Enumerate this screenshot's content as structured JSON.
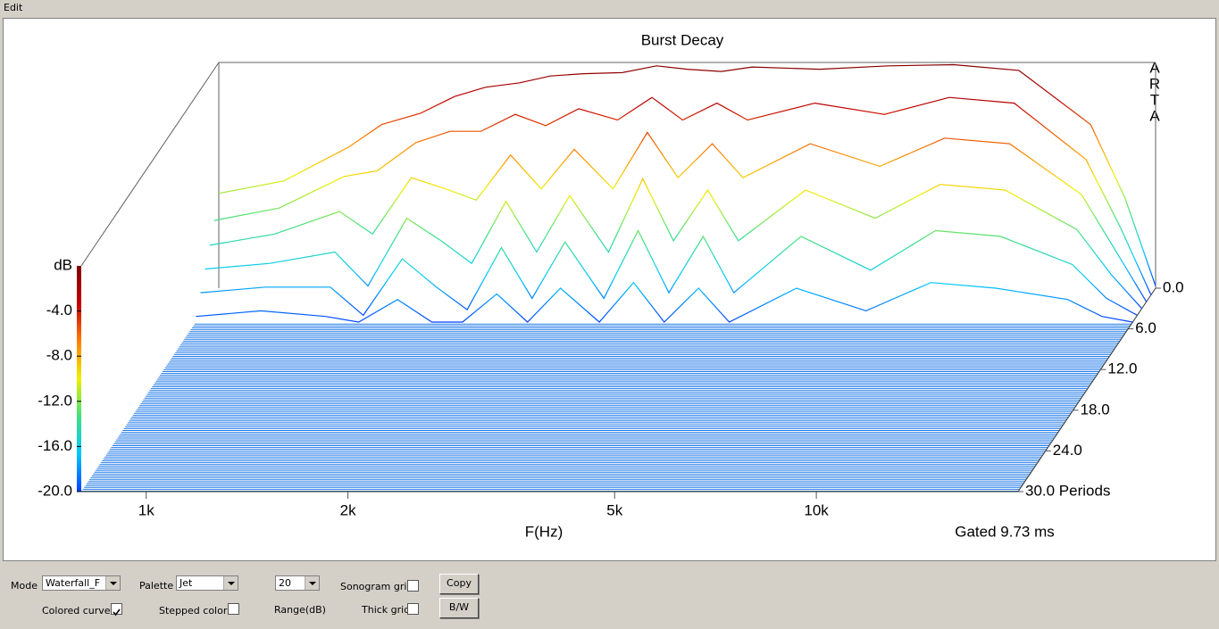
{
  "menu": {
    "items": [
      "Edit"
    ]
  },
  "chart_data": {
    "type": "waterfall",
    "title": "Burst Decay",
    "side_label": "ARTA",
    "xlabel": "F(Hz)",
    "annotation": "Gated 9.73 ms",
    "ylabel": "dB",
    "xscale": "log",
    "xlim": [
      800,
      20000
    ],
    "xticks": [
      {
        "value": 1000,
        "label": "1k"
      },
      {
        "value": 2000,
        "label": "2k"
      },
      {
        "value": 5000,
        "label": "5k"
      },
      {
        "value": 10000,
        "label": "10k"
      }
    ],
    "ylim": [
      -20,
      0
    ],
    "yticks": [
      {
        "value": -4,
        "label": "-4.0"
      },
      {
        "value": -8,
        "label": "-8.0"
      },
      {
        "value": -12,
        "label": "-12.0"
      },
      {
        "value": -16,
        "label": "-16.0"
      },
      {
        "value": -20,
        "label": "-20.0"
      }
    ],
    "zlim": [
      0,
      30
    ],
    "zticks": [
      {
        "value": 0,
        "label": "0.0"
      },
      {
        "value": 6,
        "label": "6.0"
      },
      {
        "value": 12,
        "label": "12.0"
      },
      {
        "value": 18,
        "label": "18.0"
      },
      {
        "value": 24,
        "label": "24.0"
      },
      {
        "value": 30,
        "label": "30.0 Periods"
      }
    ],
    "colorbar_colors": [
      "#0040ff",
      "#00c8ff",
      "#40e080",
      "#f0f000",
      "#ff8000",
      "#c00000",
      "#800000"
    ],
    "floor_color": "#1e78e6",
    "x": [
      800,
      1000,
      1250,
      1400,
      1600,
      1800,
      2000,
      2250,
      2500,
      2800,
      3200,
      3600,
      4000,
      4500,
      5000,
      6300,
      8000,
      10000,
      12500,
      16000,
      18000,
      20000
    ],
    "series": [
      {
        "period": 0,
        "values": [
          -11.6,
          -10.5,
          -7.5,
          -5.5,
          -4.5,
          -3.0,
          -2.2,
          -1.8,
          -1.2,
          -1.0,
          -0.9,
          -0.3,
          -0.6,
          -0.8,
          -0.4,
          -0.6,
          -0.3,
          -0.2,
          -0.7,
          -5.5,
          -12,
          -19.8
        ]
      },
      {
        "period": 1,
        "values": [
          -13.4,
          -12.3,
          -9.5,
          -9,
          -6.5,
          -5.5,
          -5.5,
          -4,
          -5,
          -3.5,
          -4.5,
          -2.5,
          -4.5,
          -3,
          -4.5,
          -3,
          -4,
          -2.5,
          -3,
          -8,
          -14,
          -20
        ]
      },
      {
        "period": 2,
        "values": [
          -15,
          -14,
          -12,
          -14,
          -9,
          -10,
          -11,
          -7,
          -10,
          -6.5,
          -10,
          -5,
          -9,
          -6,
          -9,
          -6,
          -8,
          -5.5,
          -6,
          -10.5,
          -15.5,
          -20
        ]
      },
      {
        "period": 3,
        "values": [
          -16.5,
          -16,
          -15,
          -18,
          -12,
          -14,
          -16,
          -10.5,
          -15,
          -10,
          -15,
          -8.5,
          -14,
          -9.5,
          -14,
          -9.5,
          -12,
          -9,
          -9.5,
          -13,
          -17,
          -20
        ]
      },
      {
        "period": 4,
        "values": [
          -18,
          -17.5,
          -17.5,
          -20,
          -15,
          -17.5,
          -19.5,
          -14,
          -18.5,
          -13.5,
          -18.5,
          -12.5,
          -18,
          -13,
          -18,
          -13,
          -16,
          -12.5,
          -13,
          -15.5,
          -18.5,
          -20
        ]
      },
      {
        "period": 5,
        "values": [
          -19.5,
          -19,
          -19.5,
          -20,
          -18,
          -20,
          -20,
          -17.5,
          -20,
          -17,
          -20,
          -16.5,
          -20,
          -17,
          -20,
          -17,
          -19,
          -16.5,
          -17,
          -18,
          -19.5,
          -20
        ]
      }
    ]
  },
  "controls": {
    "mode": {
      "label": "Mode",
      "value": "Waterfall_F"
    },
    "palette": {
      "label": "Palette",
      "value": "Jet"
    },
    "range": {
      "value": "20",
      "label": "Range(dB)"
    },
    "sonogram_grid": {
      "label": "Sonogram grid",
      "checked": false
    },
    "thick_grid": {
      "label": "Thick grid",
      "checked": false
    },
    "colored_curves": {
      "label": "Colored curves",
      "checked": true
    },
    "stepped_colors": {
      "label": "Stepped colors",
      "checked": false
    },
    "copy": "Copy",
    "bw": "B/W"
  }
}
